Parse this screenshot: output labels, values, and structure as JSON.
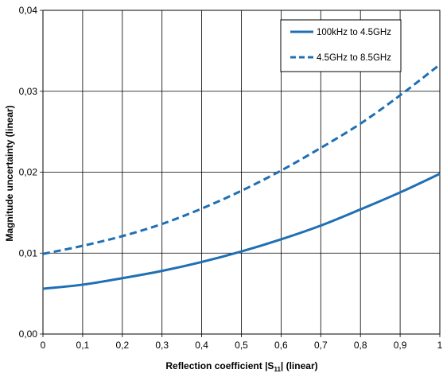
{
  "chart_data": {
    "type": "line",
    "x_axis": {
      "label": "Reflection coefficient |S",
      "label_sub": "11",
      "label_end": "| (linear)",
      "range": [
        0,
        1
      ],
      "ticks": [
        "0",
        "0,1",
        "0,2",
        "0,3",
        "0,4",
        "0,5",
        "0,6",
        "0,7",
        "0,8",
        "0,9",
        "1"
      ],
      "tick_values": [
        0,
        0.1,
        0.2,
        0.3,
        0.4,
        0.5,
        0.6,
        0.7,
        0.8,
        0.9,
        1
      ]
    },
    "y_axis": {
      "label": "Magnitude uncertainty (linear)",
      "range": [
        0,
        0.04
      ],
      "ticks": [
        "0,00",
        "0,01",
        "0,02",
        "0,03",
        "0,04"
      ],
      "tick_values": [
        0,
        0.01,
        0.02,
        0.03,
        0.04
      ]
    },
    "grid": true,
    "legend_position": "top-right",
    "x": [
      0,
      0.1,
      0.2,
      0.3,
      0.4,
      0.5,
      0.6,
      0.7,
      0.8,
      0.9,
      1.0
    ],
    "series": [
      {
        "name": "100kHz to 4.5GHz",
        "style": "solid",
        "color": "#1f6fb4",
        "values": [
          0.0056,
          0.0061,
          0.0069,
          0.0078,
          0.0089,
          0.0102,
          0.0117,
          0.0134,
          0.0154,
          0.0175,
          0.0198
        ]
      },
      {
        "name": "4.5GHz to 8.5GHz",
        "style": "dashed",
        "color": "#1f6fb4",
        "values": [
          0.0099,
          0.0109,
          0.0121,
          0.0136,
          0.0155,
          0.0177,
          0.0202,
          0.023,
          0.026,
          0.0295,
          0.0333
        ]
      }
    ]
  }
}
